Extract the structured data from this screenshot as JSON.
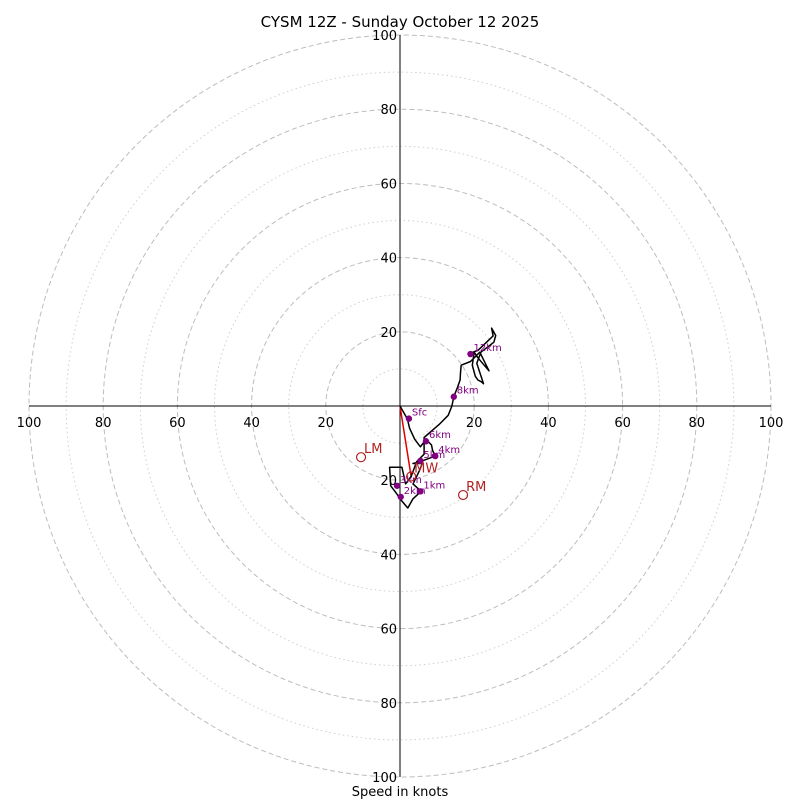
{
  "chart_data": {
    "type": "hodograph",
    "title": "CYSM 12Z - Sunday October 12 2025",
    "xlabel": "Speed in knots",
    "units": "knots",
    "ring_max": 100,
    "major_rings": [
      20,
      40,
      60,
      80,
      100
    ],
    "minor_rings": [
      10,
      30,
      50,
      70,
      90
    ],
    "axis_ticks": {
      "right": [
        "20",
        "40",
        "60",
        "80",
        "100"
      ],
      "left": [
        "20",
        "40",
        "60",
        "80",
        "100"
      ],
      "top": [
        "20",
        "40",
        "60",
        "80",
        "100"
      ],
      "bottom": [
        "20",
        "40",
        "60",
        "80",
        "100"
      ],
      "right_values": [
        20,
        40,
        60,
        80,
        100
      ],
      "left_values": [
        -20,
        -40,
        -60,
        -80,
        -100
      ],
      "top_values": [
        20,
        40,
        60,
        80,
        100
      ],
      "bottom_values": [
        -20,
        -40,
        -60,
        -80,
        -100
      ]
    },
    "trace": {
      "color": "#000000",
      "points": [
        [
          0,
          0
        ],
        [
          2,
          -3.5
        ],
        [
          2.6,
          -6
        ],
        [
          4,
          -9
        ],
        [
          5.5,
          -11
        ],
        [
          7,
          -9
        ],
        [
          8.5,
          -10.5
        ],
        [
          8.8,
          -12
        ],
        [
          9.5,
          -13.5
        ],
        [
          5.5,
          -15
        ],
        [
          3.5,
          -15.5
        ],
        [
          6,
          -15.5
        ],
        [
          5.2,
          -17.5
        ],
        [
          3.5,
          -21
        ],
        [
          5.7,
          -23
        ],
        [
          3.5,
          -25
        ],
        [
          2.1,
          -27.5
        ],
        [
          0.4,
          -25.5
        ],
        [
          -1,
          -23.5
        ],
        [
          -2.5,
          -21.5
        ],
        [
          -2.8,
          -16.5
        ],
        [
          0.5,
          -16.5
        ],
        [
          1.5,
          -21
        ],
        [
          3,
          -19
        ],
        [
          4.5,
          -15
        ],
        [
          6.5,
          -13
        ],
        [
          6.5,
          -8.5
        ],
        [
          10.5,
          -5
        ],
        [
          13,
          -2.5
        ],
        [
          14,
          0
        ],
        [
          14.5,
          2.5
        ],
        [
          15.5,
          5
        ],
        [
          16.2,
          7
        ],
        [
          16.3,
          9
        ],
        [
          16.5,
          11
        ],
        [
          19,
          12
        ],
        [
          21.5,
          14.5
        ],
        [
          24,
          9.5
        ],
        [
          21,
          13
        ],
        [
          20,
          14.5
        ],
        [
          19.5,
          11
        ],
        [
          20.3,
          8
        ],
        [
          21,
          7
        ],
        [
          22,
          6.5
        ],
        [
          22.5,
          6
        ],
        [
          20.7,
          11.5
        ],
        [
          21.8,
          14.5
        ],
        [
          25.3,
          17.2
        ],
        [
          25.8,
          19
        ],
        [
          24.7,
          21
        ],
        [
          25.1,
          18.9
        ],
        [
          21,
          15
        ],
        [
          18.7,
          14.2
        ]
      ]
    },
    "heights": [
      {
        "label": "Sfc",
        "u": 2.4,
        "v": -3.4,
        "dx": 3,
        "dy": -3
      },
      {
        "label": "1km",
        "u": 5.5,
        "v": -23.0,
        "dx": 3,
        "dy": -3
      },
      {
        "label": "2km",
        "u": 0.2,
        "v": -24.5,
        "dx": 3,
        "dy": -3
      },
      {
        "label": "3km",
        "u": -0.8,
        "v": -21.5,
        "dx": 3,
        "dy": -3
      },
      {
        "label": "4km",
        "u": 9.5,
        "v": -13.5,
        "dx": 3,
        "dy": -3
      },
      {
        "label": "5km",
        "u": 5.5,
        "v": -14.8,
        "dx": 3,
        "dy": -3
      },
      {
        "label": "6km",
        "u": 7.0,
        "v": -9.5,
        "dx": 3,
        "dy": -3
      },
      {
        "label": "8km",
        "u": 14.5,
        "v": 2.5,
        "dx": 3,
        "dy": -3
      },
      {
        "label": "12km",
        "u": 19.0,
        "v": 14.0,
        "dx": 3,
        "dy": -3
      }
    ],
    "storm_motions": [
      {
        "label": "LM",
        "u": -10.5,
        "v": -13.8,
        "color": "#b22222"
      },
      {
        "label": "MW",
        "u": 3.0,
        "v": -19.0,
        "color": "#b22222"
      },
      {
        "label": "RM",
        "u": 17.0,
        "v": -24.0,
        "color": "#b22222"
      }
    ],
    "shear_vector": {
      "from": [
        0,
        0
      ],
      "to": [
        3,
        -19
      ],
      "color": "#e00000"
    },
    "colors": {
      "ring_major": "#bdbdbd",
      "ring_minor": "#cfcfcf",
      "axis": "#000000",
      "height_marker": "#800080"
    }
  }
}
